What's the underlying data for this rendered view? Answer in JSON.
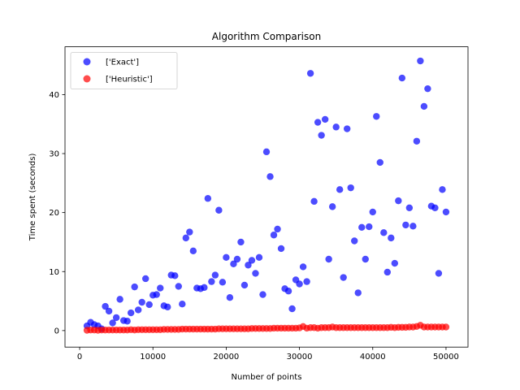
{
  "chart_data": {
    "type": "scatter",
    "title": "Algorithm Comparison",
    "xlabel": "Number of points",
    "ylabel": "Time spent (seconds)",
    "xlim": [
      -2000,
      53000
    ],
    "ylim": [
      -2.8,
      48.1
    ],
    "xticks": [
      0,
      10000,
      20000,
      30000,
      40000,
      50000
    ],
    "yticks": [
      0,
      10,
      20,
      30,
      40
    ],
    "legend_position": "upper-left",
    "series": [
      {
        "name": "['Exact']",
        "color": "#0000ff",
        "x": [
          1000,
          1500,
          2000,
          2500,
          3000,
          3500,
          4000,
          4500,
          5000,
          5500,
          6000,
          6500,
          7000,
          7500,
          8000,
          8500,
          9000,
          9500,
          10000,
          10500,
          11000,
          11500,
          12000,
          12500,
          13000,
          13500,
          14000,
          14500,
          15000,
          15500,
          16000,
          16500,
          17000,
          17500,
          18000,
          18500,
          19000,
          19500,
          20000,
          20500,
          21000,
          21500,
          22000,
          22500,
          23000,
          23500,
          24000,
          24500,
          25000,
          25500,
          26000,
          26500,
          27000,
          27500,
          28000,
          28500,
          29000,
          29500,
          30000,
          30500,
          31000,
          31500,
          32000,
          32500,
          33000,
          33500,
          34000,
          34500,
          35000,
          35500,
          36000,
          36500,
          37000,
          37500,
          38000,
          38500,
          39000,
          39500,
          40000,
          40500,
          41000,
          41500,
          42000,
          42500,
          43000,
          43500,
          44000,
          44500,
          45000,
          45500,
          46000,
          46500,
          47000,
          47500,
          48000,
          48500,
          49000,
          49500,
          50000
        ],
        "y": [
          0.8,
          1.4,
          1.0,
          0.8,
          0.3,
          4.1,
          3.3,
          1.3,
          2.2,
          5.3,
          1.7,
          1.6,
          3.0,
          7.4,
          3.5,
          4.8,
          8.8,
          4.4,
          6.0,
          6.1,
          7.2,
          4.2,
          4.0,
          9.4,
          9.3,
          7.5,
          4.5,
          15.7,
          16.7,
          13.5,
          7.2,
          7.1,
          7.3,
          22.4,
          8.3,
          9.4,
          20.4,
          8.2,
          12.4,
          5.6,
          11.3,
          12.1,
          15.0,
          7.7,
          11.1,
          11.9,
          9.7,
          12.4,
          6.1,
          30.3,
          26.1,
          16.2,
          17.2,
          13.9,
          7.1,
          6.7,
          3.7,
          8.6,
          7.9,
          10.8,
          8.3,
          43.6,
          21.9,
          35.3,
          33.1,
          35.8,
          12.1,
          21.0,
          34.5,
          23.9,
          9.0,
          34.2,
          24.2,
          15.2,
          6.4,
          17.5,
          12.1,
          17.6,
          20.1,
          36.3,
          28.5,
          16.6,
          9.9,
          15.7,
          11.4,
          22.0,
          42.8,
          17.9,
          20.8,
          17.7,
          32.1,
          45.7,
          38.0,
          41.0,
          21.1,
          20.8,
          9.7,
          23.9,
          20.1
        ]
      },
      {
        "name": "['Heuristic']",
        "color": "#ff0000",
        "x": [
          1000,
          1500,
          2000,
          2500,
          3000,
          3500,
          4000,
          4500,
          5000,
          5500,
          6000,
          6500,
          7000,
          7500,
          8000,
          8500,
          9000,
          9500,
          10000,
          10500,
          11000,
          11500,
          12000,
          12500,
          13000,
          13500,
          14000,
          14500,
          15000,
          15500,
          16000,
          16500,
          17000,
          17500,
          18000,
          18500,
          19000,
          19500,
          20000,
          20500,
          21000,
          21500,
          22000,
          22500,
          23000,
          23500,
          24000,
          24500,
          25000,
          25500,
          26000,
          26500,
          27000,
          27500,
          28000,
          28500,
          29000,
          29500,
          30000,
          30500,
          31000,
          31500,
          32000,
          32500,
          33000,
          33500,
          34000,
          34500,
          35000,
          35500,
          36000,
          36500,
          37000,
          37500,
          38000,
          38500,
          39000,
          39500,
          40000,
          40500,
          41000,
          41500,
          42000,
          42500,
          43000,
          43500,
          44000,
          44500,
          45000,
          45500,
          46000,
          46500,
          47000,
          47500,
          48000,
          48500,
          49000,
          49500,
          50000
        ],
        "y": [
          0.05,
          0.1,
          0.1,
          0.05,
          0.1,
          0.1,
          0.1,
          0.1,
          0.1,
          0.1,
          0.1,
          0.1,
          0.15,
          0.1,
          0.15,
          0.15,
          0.15,
          0.15,
          0.15,
          0.15,
          0.15,
          0.2,
          0.2,
          0.2,
          0.2,
          0.2,
          0.25,
          0.25,
          0.25,
          0.25,
          0.25,
          0.25,
          0.25,
          0.25,
          0.25,
          0.25,
          0.3,
          0.3,
          0.3,
          0.3,
          0.3,
          0.3,
          0.3,
          0.3,
          0.3,
          0.35,
          0.35,
          0.35,
          0.35,
          0.35,
          0.35,
          0.4,
          0.4,
          0.4,
          0.4,
          0.4,
          0.4,
          0.4,
          0.45,
          0.7,
          0.4,
          0.5,
          0.5,
          0.4,
          0.5,
          0.5,
          0.5,
          0.6,
          0.5,
          0.5,
          0.5,
          0.5,
          0.5,
          0.5,
          0.5,
          0.5,
          0.5,
          0.5,
          0.5,
          0.5,
          0.5,
          0.5,
          0.5,
          0.55,
          0.5,
          0.55,
          0.55,
          0.55,
          0.6,
          0.6,
          0.7,
          0.9,
          0.6,
          0.6,
          0.6,
          0.6,
          0.6,
          0.6,
          0.6
        ]
      }
    ]
  }
}
